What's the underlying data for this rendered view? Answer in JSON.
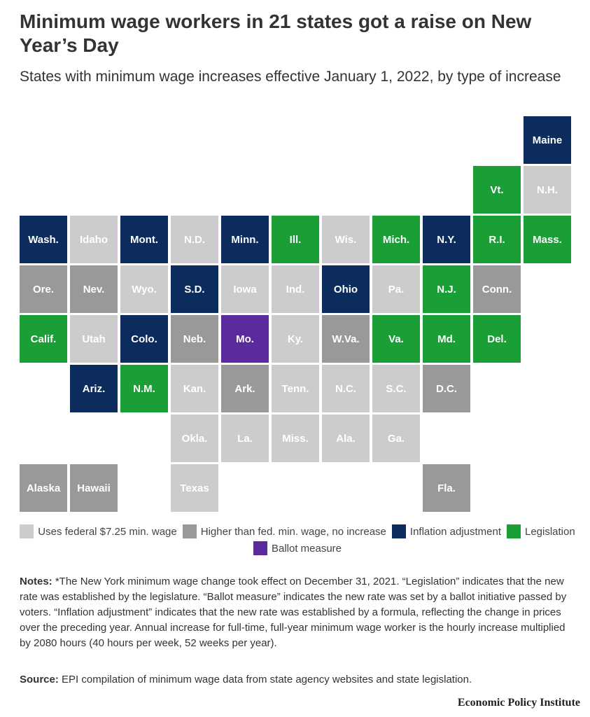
{
  "header": {
    "title": "Minimum wage workers in 21 states got a raise on New Year’s Day",
    "subtitle": "States with minimum wage increases effective January 1, 2022, by type of increase"
  },
  "legend": [
    {
      "name": "Uses federal $7.25 min. wage",
      "color": "#cccccc"
    },
    {
      "name": "Higher than fed. min. wage, no increase",
      "color": "#999999"
    },
    {
      "name": "Inflation adjustment",
      "color": "#0d2c5e"
    },
    {
      "name": "Legislation",
      "color": "#1a9e36"
    },
    {
      "name": "Ballot measure",
      "color": "#5b2a9c"
    }
  ],
  "tiles": [
    [
      null,
      null,
      null,
      null,
      null,
      null,
      null,
      null,
      null,
      null,
      {
        "label": "Maine",
        "legend": 2
      }
    ],
    [
      null,
      null,
      null,
      null,
      null,
      null,
      null,
      null,
      null,
      {
        "label": "Vt.",
        "legend": 3
      },
      {
        "label": "N.H.",
        "legend": 0
      }
    ],
    [
      {
        "label": "Wash.",
        "legend": 2
      },
      {
        "label": "Idaho",
        "legend": 0
      },
      {
        "label": "Mont.",
        "legend": 2
      },
      {
        "label": "N.D.",
        "legend": 0
      },
      {
        "label": "Minn.",
        "legend": 2
      },
      {
        "label": "Ill.",
        "legend": 3
      },
      {
        "label": "Wis.",
        "legend": 0
      },
      {
        "label": "Mich.",
        "legend": 3
      },
      {
        "label": "N.Y.",
        "legend": 2
      },
      {
        "label": "R.I.",
        "legend": 3
      },
      {
        "label": "Mass.",
        "legend": 3
      }
    ],
    [
      {
        "label": "Ore.",
        "legend": 1
      },
      {
        "label": "Nev.",
        "legend": 1
      },
      {
        "label": "Wyo.",
        "legend": 0
      },
      {
        "label": "S.D.",
        "legend": 2
      },
      {
        "label": "Iowa",
        "legend": 0
      },
      {
        "label": "Ind.",
        "legend": 0
      },
      {
        "label": "Ohio",
        "legend": 2
      },
      {
        "label": "Pa.",
        "legend": 0
      },
      {
        "label": "N.J.",
        "legend": 3
      },
      {
        "label": "Conn.",
        "legend": 1
      },
      null
    ],
    [
      {
        "label": "Calif.",
        "legend": 3
      },
      {
        "label": "Utah",
        "legend": 0
      },
      {
        "label": "Colo.",
        "legend": 2
      },
      {
        "label": "Neb.",
        "legend": 1
      },
      {
        "label": "Mo.",
        "legend": 4
      },
      {
        "label": "Ky.",
        "legend": 0
      },
      {
        "label": "W.Va.",
        "legend": 1
      },
      {
        "label": "Va.",
        "legend": 3
      },
      {
        "label": "Md.",
        "legend": 3
      },
      {
        "label": "Del.",
        "legend": 3
      },
      null
    ],
    [
      null,
      {
        "label": "Ariz.",
        "legend": 2
      },
      {
        "label": "N.M.",
        "legend": 3
      },
      {
        "label": "Kan.",
        "legend": 0
      },
      {
        "label": "Ark.",
        "legend": 1
      },
      {
        "label": "Tenn.",
        "legend": 0
      },
      {
        "label": "N.C.",
        "legend": 0
      },
      {
        "label": "S.C.",
        "legend": 0
      },
      {
        "label": "D.C.",
        "legend": 1
      },
      null,
      null
    ],
    [
      null,
      null,
      null,
      {
        "label": "Okla.",
        "legend": 0
      },
      {
        "label": "La.",
        "legend": 0
      },
      {
        "label": "Miss.",
        "legend": 0
      },
      {
        "label": "Ala.",
        "legend": 0
      },
      {
        "label": "Ga.",
        "legend": 0
      },
      null,
      null,
      null
    ],
    [
      {
        "label": "Alaska",
        "legend": 1
      },
      {
        "label": "Hawaii",
        "legend": 1
      },
      null,
      {
        "label": "Texas",
        "legend": 0
      },
      null,
      null,
      null,
      null,
      {
        "label": "Fla.",
        "legend": 1
      },
      null,
      null
    ]
  ],
  "notes": {
    "label": "Notes:",
    "text": "*The New York minimum wage change took effect on December 31, 2021. “Legislation” indicates that the new rate was established by the legislature. “Ballot measure” indicates the new rate was set by a ballot initiative passed by voters. “Inflation adjustment” indicates that the new rate was established by a formula, reflecting the change in prices over the preceding year. Annual increase for full-time, full-year minimum wage worker is the hourly increase multiplied by 2080 hours (40 hours per week, 52 weeks per year)."
  },
  "source": {
    "label": "Source:",
    "text": "EPI compilation of minimum wage data from state agency websites and state legislation."
  },
  "footer": "Economic Policy Institute"
}
